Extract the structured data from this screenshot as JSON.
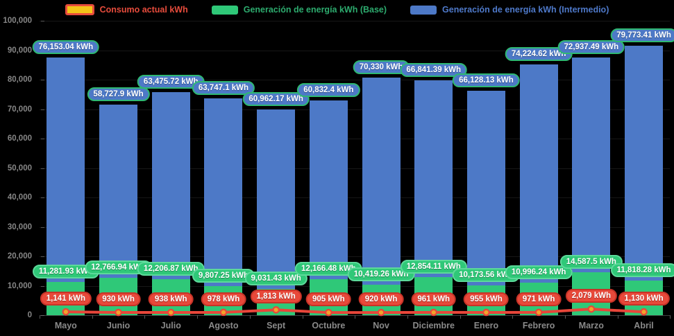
{
  "legend": {
    "items": [
      {
        "label": "Consumo actual kWh",
        "text_color": "#e74c3c",
        "swatch_fill": "#f2c318",
        "swatch_border": "#e74c3c",
        "style": "outlined"
      },
      {
        "label": "Generación de energía kWh (Base)",
        "text_color": "#2dab6e",
        "swatch_fill": "#2fc878",
        "swatch_border": "",
        "style": "solid"
      },
      {
        "label": "Generación de energía kWh (Intermedio)",
        "text_color": "#4e79c9",
        "swatch_fill": "#4d79c7",
        "swatch_border": "",
        "style": "solid"
      }
    ]
  },
  "chart_data": {
    "type": "bar",
    "stacked": true,
    "legend_position": "top",
    "grid": true,
    "background": "#000000",
    "categories": [
      "Mayo",
      "Junio",
      "Julio",
      "Agosto",
      "Sept",
      "Octubre",
      "Nov",
      "Diciembre",
      "Enero",
      "Febrero",
      "Marzo",
      "Abril"
    ],
    "ylim": [
      0,
      100000
    ],
    "ytick_step": 10000,
    "ytick_labels": [
      "0",
      "10,000",
      "20,000",
      "30,000",
      "40,000",
      "50,000",
      "60,000",
      "70,000",
      "80,000",
      "90,000",
      "100,000"
    ],
    "series": [
      {
        "name": "Generación de energía kWh (Base)",
        "type": "bar",
        "color": "#2fc878",
        "label_fill": "#2fc878",
        "label_border": "#5dd99a",
        "values": [
          11281.93,
          12766.94,
          12206.87,
          9807.25,
          9031.43,
          12166.48,
          10419.26,
          12854.11,
          10173.56,
          10996.24,
          14587.5,
          11818.28
        ],
        "labels": [
          "11,281.93 kWh",
          "12,766.94 kWh",
          "12,206.87 kWh",
          "9,807.25 kWh",
          "9,031.43 kWh",
          "12,166.48 kWh",
          "10,419.26 kWh",
          "12,854.11 kWh",
          "10,173.56 kWh",
          "10,996.24 kWh",
          "14,587.5 kWh",
          "11,818.28 kWh"
        ]
      },
      {
        "name": "Generación de energía kWh (Intermedio)",
        "type": "bar",
        "color": "#4d79c7",
        "label_fill": "#4d79c7",
        "label_border": "#2eb872",
        "values": [
          76153.04,
          58727.9,
          63475.72,
          63747.1,
          60962.17,
          60832.4,
          70330,
          66841.39,
          66128.13,
          74224.62,
          72937.49,
          79773.41
        ],
        "labels": [
          "76,153.04 kWh",
          "58,727.9 kWh",
          "63,475.72 kWh",
          "63,747.1 kWh",
          "60,962.17 kWh",
          "60,832.4 kWh",
          "70,330 kWh",
          "66,841.39 kWh",
          "66,128.13 kWh",
          "74,224.62 kWh",
          "72,937.49 kWh",
          "79,773.41 kWh"
        ]
      },
      {
        "name": "Consumo actual kWh",
        "type": "line",
        "color": "#e8463a",
        "point_fill": "#f1a32b",
        "point_border": "#e8463a",
        "label_fill": "#e8493a",
        "label_border": "#c63327",
        "values": [
          1141,
          930,
          938,
          978,
          1813,
          905,
          920,
          961,
          955,
          971,
          2079,
          1130
        ],
        "labels": [
          "1,141 kWh",
          "930 kWh",
          "938 kWh",
          "978 kWh",
          "1,813 kWh",
          "905 kWh",
          "920 kWh",
          "961 kWh",
          "955 kWh",
          "971 kWh",
          "2,079 kWh",
          "1,130 kWh"
        ]
      }
    ]
  }
}
